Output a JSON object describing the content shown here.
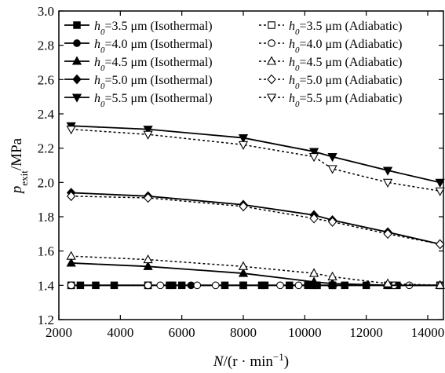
{
  "chart_data": {
    "type": "line",
    "xlabel": "N/(r·min⁻¹)",
    "ylabel": "p_exit/MPa",
    "xlim": [
      2000,
      14500
    ],
    "ylim": [
      1.2,
      3.0
    ],
    "x_ticks": [
      2000,
      4000,
      6000,
      8000,
      10000,
      12000,
      14000
    ],
    "y_ticks": [
      1.2,
      1.4,
      1.6,
      1.8,
      2.0,
      2.2,
      2.4,
      2.6,
      2.8,
      3.0
    ],
    "grid": false,
    "legend_position": "top",
    "series": [
      {
        "name": "h0=3.5 μm (Isothermal)",
        "marker": "square",
        "filled": true,
        "dashed": false,
        "x": [
          2400,
          2700,
          3200,
          3800,
          4900,
          5600,
          5700,
          6000,
          7400,
          8000,
          8600,
          8700,
          9500,
          10100,
          10400,
          10900,
          11300,
          12000,
          12800,
          13000,
          14400
        ],
        "y": [
          1.4,
          1.4,
          1.4,
          1.4,
          1.4,
          1.4,
          1.4,
          1.4,
          1.4,
          1.4,
          1.4,
          1.4,
          1.4,
          1.4,
          1.4,
          1.4,
          1.4,
          1.4,
          1.4,
          1.4,
          1.4
        ]
      },
      {
        "name": "h0=3.5 μm (Adiabatic)",
        "marker": "square",
        "filled": false,
        "dashed": true,
        "x": [
          2400,
          4900,
          8000,
          10300,
          10900,
          12700,
          14400
        ],
        "y": [
          1.4,
          1.4,
          1.4,
          1.4,
          1.4,
          1.4,
          1.4
        ]
      },
      {
        "name": "h0=4.0 μm (Isothermal)",
        "marker": "circle",
        "filled": true,
        "dashed": false,
        "x": [
          2400,
          4900,
          6300,
          8000,
          10300,
          10900,
          12700,
          14400
        ],
        "y": [
          1.4,
          1.4,
          1.4,
          1.4,
          1.4,
          1.4,
          1.4,
          1.4
        ]
      },
      {
        "name": "h0=4.0 μm (Adiabatic)",
        "marker": "circle",
        "filled": false,
        "dashed": true,
        "x": [
          2400,
          4900,
          5300,
          6500,
          7100,
          9200,
          9800,
          12900,
          13400,
          14400
        ],
        "y": [
          1.4,
          1.4,
          1.4,
          1.4,
          1.4,
          1.4,
          1.4,
          1.4,
          1.4,
          1.4
        ]
      },
      {
        "name": "h0=4.5 μm (Isothermal)",
        "marker": "triangle-up",
        "filled": true,
        "dashed": false,
        "x": [
          2400,
          4900,
          8000,
          10300,
          10900,
          12700,
          14400
        ],
        "y": [
          1.53,
          1.51,
          1.47,
          1.42,
          1.41,
          1.4,
          1.4
        ]
      },
      {
        "name": "h0=4.5 μm (Adiabatic)",
        "marker": "triangle-up",
        "filled": false,
        "dashed": true,
        "x": [
          2400,
          4900,
          8000,
          10300,
          10900,
          12700,
          14400
        ],
        "y": [
          1.57,
          1.55,
          1.51,
          1.47,
          1.45,
          1.41,
          1.4
        ]
      },
      {
        "name": "h0=5.0 μm (Isothermal)",
        "marker": "diamond",
        "filled": true,
        "dashed": false,
        "x": [
          2400,
          4900,
          8000,
          10300,
          10900,
          12700,
          14400
        ],
        "y": [
          1.94,
          1.92,
          1.87,
          1.81,
          1.78,
          1.71,
          1.64
        ]
      },
      {
        "name": "h0=5.0 μm (Adiabatic)",
        "marker": "diamond",
        "filled": false,
        "dashed": true,
        "x": [
          2400,
          4900,
          8000,
          10300,
          10900,
          12700,
          14400
        ],
        "y": [
          1.92,
          1.91,
          1.86,
          1.79,
          1.77,
          1.7,
          1.64
        ]
      },
      {
        "name": "h0=5.5 μm (Isothermal)",
        "marker": "triangle-down",
        "filled": true,
        "dashed": false,
        "x": [
          2400,
          4900,
          8000,
          10300,
          10900,
          12700,
          14400
        ],
        "y": [
          2.33,
          2.31,
          2.26,
          2.18,
          2.15,
          2.07,
          2.0
        ]
      },
      {
        "name": "h0=5.5 μm (Adiabatic)",
        "marker": "triangle-down",
        "filled": false,
        "dashed": true,
        "x": [
          2400,
          4900,
          8000,
          10300,
          10900,
          12700,
          14400
        ],
        "y": [
          2.31,
          2.28,
          2.22,
          2.15,
          2.08,
          2.0,
          1.95
        ]
      }
    ],
    "legend": {
      "left": [
        {
          "h": "h",
          "sub": "0",
          "rest": "=3.5 μm (Isothermal)",
          "marker": "square",
          "filled": true,
          "dashed": false
        },
        {
          "h": "h",
          "sub": "0",
          "rest": "=4.0 μm (Isothermal)",
          "marker": "circle",
          "filled": true,
          "dashed": false
        },
        {
          "h": "h",
          "sub": "0",
          "rest": "=4.5 μm (Isothermal)",
          "marker": "triangle-up",
          "filled": true,
          "dashed": false
        },
        {
          "h": "h",
          "sub": "0",
          "rest": "=5.0 μm (Isothermal)",
          "marker": "diamond",
          "filled": true,
          "dashed": false
        },
        {
          "h": "h",
          "sub": "0",
          "rest": "=5.5 μm (Isothermal)",
          "marker": "triangle-down",
          "filled": true,
          "dashed": false
        }
      ],
      "right": [
        {
          "h": "h",
          "sub": "0",
          "rest": "=3.5 μm (Adiabatic)",
          "marker": "square",
          "filled": false,
          "dashed": true
        },
        {
          "h": "h",
          "sub": "0",
          "rest": "=4.0 μm (Adiabatic)",
          "marker": "circle",
          "filled": false,
          "dashed": true
        },
        {
          "h": "h",
          "sub": "0",
          "rest": "=4.5 μm (Adiabatic)",
          "marker": "triangle-up",
          "filled": false,
          "dashed": true
        },
        {
          "h": "h",
          "sub": "0",
          "rest": "=5.0 μm (Adiabatic)",
          "marker": "diamond",
          "filled": false,
          "dashed": true
        },
        {
          "h": "h",
          "sub": "0",
          "rest": "=5.5 μm (Adiabatic)",
          "marker": "triangle-down",
          "filled": false,
          "dashed": true
        }
      ]
    },
    "axis_title": {
      "y_main": "p",
      "y_sub": "exit",
      "y_rest": "/MPa",
      "x_main": "N",
      "x_rest": "/(r · min",
      "x_sup": "−1",
      "x_close": ")"
    },
    "colors": {
      "line": "#000000",
      "background": "#ffffff"
    }
  }
}
